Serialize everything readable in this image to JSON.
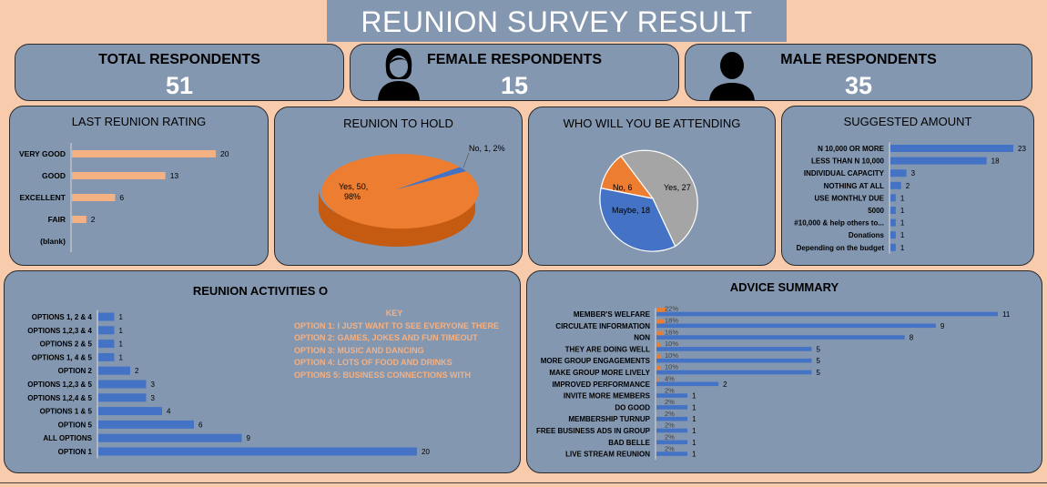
{
  "header": {
    "title": "REUNION SURVEY RESULT"
  },
  "stats": {
    "total": {
      "label": "TOTAL RESPONDENTS",
      "value": "51"
    },
    "female": {
      "label": "FEMALE RESPONDENTS",
      "value": "15"
    },
    "male": {
      "label": "MALE RESPONDENTS",
      "value": "35"
    }
  },
  "colors": {
    "background": "#f8cbad",
    "panel": "#8497b0",
    "bar_orange": "#f4b183",
    "bar_blue": "#4472c4",
    "pie_orange": "#ed7d31",
    "pie_gray": "#a5a5a5"
  },
  "chart_data": [
    {
      "type": "bar",
      "title": "LAST REUNION RATING",
      "orientation": "horizontal",
      "categories": [
        "VERY GOOD",
        "GOOD",
        "EXCELLENT",
        "FAIR",
        "(blank)"
      ],
      "values": [
        20,
        13,
        6,
        2,
        null
      ],
      "labels": [
        "20",
        "13",
        "6",
        "2",
        ""
      ]
    },
    {
      "type": "pie",
      "title": "REUNION TO HOLD",
      "style": "3d",
      "slices": [
        {
          "name": "Yes",
          "value": 50,
          "pct": "98%",
          "label_line1": "Yes, 50,",
          "label_line2": "98%"
        },
        {
          "name": "No",
          "value": 1,
          "pct": "2%",
          "label_line1": "No, 1, 2%",
          "label_line2": ""
        }
      ]
    },
    {
      "type": "pie",
      "title": "WHO WILL YOU BE ATTENDING",
      "slices": [
        {
          "name": "Yes",
          "value": 27,
          "label": "Yes, 27"
        },
        {
          "name": "Maybe",
          "value": 18,
          "label": "Maybe, 18"
        },
        {
          "name": "No",
          "value": 6,
          "label": "No, 6"
        }
      ]
    },
    {
      "type": "bar",
      "title": "SUGGESTED AMOUNT",
      "orientation": "horizontal",
      "categories": [
        "N 10,000 OR MORE",
        "LESS THAN N 10,000",
        "INDIVIDUAL CAPACITY",
        "NOTHING AT ALL",
        "USE MONTHLY DUE",
        "5000",
        "#10,000 & help others to...",
        "Donations",
        "Depending on the budget"
      ],
      "values": [
        23,
        18,
        3,
        2,
        1,
        1,
        1,
        1,
        1
      ],
      "labels": [
        "23",
        "18",
        "3",
        "2",
        "1",
        "1",
        "1",
        "1",
        "1"
      ]
    },
    {
      "type": "bar",
      "title": "REUNION ACTIVITIES O",
      "orientation": "horizontal",
      "categories": [
        "OPTIONS 1, 2 & 4",
        "OPTIONS 1,2,3 & 4",
        "OPTIONS 2 & 5",
        "OPTIONS 1, 4 & 5",
        "OPTION 2",
        "OPTIONS 1,2,3 & 5",
        "OPTIONS 1,2,4 & 5",
        "OPTIONS 1 & 5",
        "OPTION 5",
        "ALL OPTIONS",
        "OPTION 1"
      ],
      "values": [
        1,
        1,
        1,
        1,
        2,
        3,
        3,
        4,
        6,
        9,
        20
      ],
      "labels": [
        "1",
        "1",
        "1",
        "1",
        "2",
        "3",
        "3",
        "4",
        "6",
        "9",
        "20"
      ],
      "key": {
        "title": "KEY",
        "items": [
          "OPTION 1: I JUST WANT TO SEE EVERYONE THERE",
          "OPTION 2: GAMES, JOKES AND FUN TIMEOUT",
          "OPTION 3: MUSIC AND DANCING",
          "OPTION 4: LOTS OF FOOD AND DRINKS",
          "OPTIONS 5: BUSINESS CONNECTIONS WITH"
        ]
      }
    },
    {
      "type": "bar",
      "title": "ADVICE SUMMARY",
      "orientation": "horizontal",
      "categories": [
        "MEMBER'S WELFARE",
        "CIRCULATE INFORMATION",
        "NON",
        "THEY ARE DOING WELL",
        "MORE GROUP ENGAGEMENTS",
        "MAKE GROUP MORE LIVELY",
        "IMPROVED PERFORMANCE",
        "INVITE MORE MEMBERS",
        "DO GOOD",
        "MEMBERSHIP TURNUP",
        "FREE BUSINESS ADS IN GROUP",
        "BAD BELLE",
        "LIVE STREAM REUNION"
      ],
      "series": [
        {
          "name": "count",
          "values": [
            11,
            9,
            8,
            5,
            5,
            5,
            2,
            1,
            1,
            1,
            1,
            1,
            1
          ],
          "labels": [
            "11",
            "9",
            "8",
            "5",
            "5",
            "5",
            "2",
            "1",
            "1",
            "1",
            "1",
            "1",
            "1"
          ]
        },
        {
          "name": "percent",
          "values": [
            22,
            18,
            16,
            10,
            10,
            10,
            4,
            2,
            2,
            2,
            2,
            2,
            2
          ],
          "labels": [
            "22%",
            "18%",
            "16%",
            "10%",
            "10%",
            "10%",
            "4%",
            "2%",
            "2%",
            "2%",
            "2%",
            "2%",
            "2%"
          ]
        }
      ]
    }
  ]
}
